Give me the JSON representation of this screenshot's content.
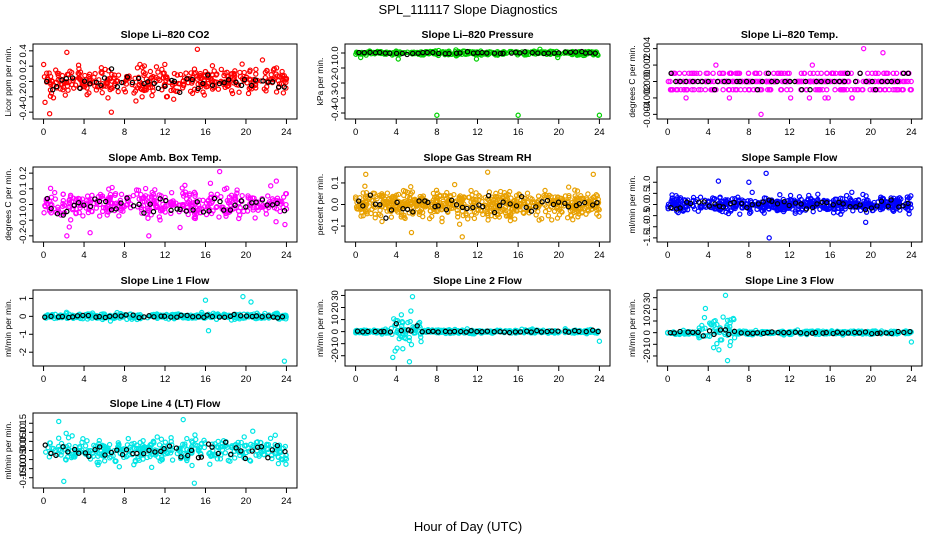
{
  "figure": {
    "title": "SPL_111117  Slope Diagnostics",
    "xlabel": "Hour of Day (UTC)"
  },
  "chart_data": [
    {
      "type": "scatter",
      "title": "Slope Li–820 CO2",
      "ylabel": "Licor ppm per min.",
      "xlim": [
        0,
        24
      ],
      "ylim": [
        -0.45,
        0.45
      ],
      "yticks": [
        -0.4,
        -0.2,
        0.0,
        0.2,
        0.4
      ],
      "ytick_labels": [
        "-0.4",
        "-0.2",
        "0.0",
        "0.2",
        "0.4"
      ],
      "xticks": [
        0,
        4,
        8,
        12,
        16,
        20,
        24
      ],
      "color": "#ff0000",
      "spread": 0.17,
      "spikes": [
        [
          0.6,
          -0.42
        ],
        [
          2.3,
          0.38
        ],
        [
          6.7,
          -0.4
        ],
        [
          15.2,
          0.42
        ]
      ],
      "n": 380,
      "seed": 11
    },
    {
      "type": "scatter",
      "title": "Slope Li–820 Pressure",
      "ylabel": "kPa per min.",
      "xlim": [
        0,
        24
      ],
      "ylim": [
        -0.42,
        0.04
      ],
      "yticks": [
        -0.4,
        -0.3,
        -0.2,
        -0.1,
        0.0
      ],
      "ytick_labels": [
        "-0.4",
        "-0.3",
        "-0.2",
        "-0.1",
        "0.0"
      ],
      "xticks": [
        0,
        4,
        8,
        12,
        16,
        20,
        24
      ],
      "color": "#00d000",
      "spread": 0.012,
      "spikes": [
        [
          8.0,
          -0.415
        ],
        [
          16.0,
          -0.415
        ],
        [
          24.0,
          -0.415
        ],
        [
          0.5,
          -0.03
        ],
        [
          4.2,
          -0.04
        ],
        [
          11.9,
          -0.04
        ],
        [
          19.9,
          -0.03
        ]
      ],
      "n": 380,
      "seed": 12
    },
    {
      "type": "scatter",
      "title": "Slope Li–820 Temp.",
      "ylabel": "degrees C per min.",
      "xlim": [
        0,
        24
      ],
      "ylim": [
        -0.0042,
        0.0042
      ],
      "yticks": [
        -0.004,
        -0.002,
        0.0,
        0.002,
        0.004
      ],
      "ytick_labels": [
        "-0.004",
        "-0.002",
        "0.000",
        "0.002",
        "0.004"
      ],
      "xticks": [
        0,
        4,
        8,
        12,
        16,
        20,
        24
      ],
      "color": "#ff00ff",
      "spread": 0.0012,
      "quant": 0.001,
      "spikes": [
        [
          9.2,
          -0.004
        ],
        [
          19.3,
          0.004
        ],
        [
          21.2,
          0.0035
        ]
      ],
      "n": 380,
      "seed": 13
    },
    {
      "type": "scatter",
      "title": "Slope Amb. Box Temp.",
      "ylabel": "degrees C per min.",
      "xlim": [
        0,
        24
      ],
      "ylim": [
        -0.22,
        0.22
      ],
      "yticks": [
        -0.2,
        -0.1,
        0.0,
        0.1,
        0.2
      ],
      "ytick_labels": [
        "-0.2",
        "-0.1",
        "0.0",
        "0.1",
        "0.2"
      ],
      "xticks": [
        0,
        4,
        8,
        12,
        16,
        20,
        24
      ],
      "color": "#ff00ff",
      "spread": 0.085,
      "spikes": [
        [
          2.3,
          -0.2
        ],
        [
          4.6,
          -0.18
        ],
        [
          10.4,
          -0.2
        ],
        [
          17.4,
          0.21
        ]
      ],
      "n": 380,
      "seed": 14
    },
    {
      "type": "scatter",
      "title": "Slope Gas Stream RH",
      "ylabel": "percent per min.",
      "xlim": [
        0,
        24
      ],
      "ylim": [
        -0.16,
        0.16
      ],
      "yticks": [
        -0.1,
        0.0,
        0.1
      ],
      "ytick_labels": [
        "-0.1",
        "0.0",
        "0.1"
      ],
      "xticks": [
        0,
        4,
        8,
        12,
        16,
        20,
        24
      ],
      "color": "#e8a000",
      "spread": 0.055,
      "spikes": [
        [
          1.0,
          0.14
        ],
        [
          5.5,
          -0.13
        ],
        [
          10.5,
          -0.15
        ],
        [
          13.0,
          0.15
        ],
        [
          23.4,
          0.14
        ]
      ],
      "n": 620,
      "seed": 15
    },
    {
      "type": "scatter",
      "title": "Slope Sample Flow",
      "ylabel": "ml/min per min.",
      "xlim": [
        0,
        24
      ],
      "ylim": [
        -1.55,
        1.55
      ],
      "yticks": [
        -1.5,
        -1.0,
        -0.5,
        0.0,
        0.5,
        1.0
      ],
      "ytick_labels": [
        "-1.5",
        "-1.0",
        "-0.5",
        "0.0",
        "0.5",
        "1.0"
      ],
      "xticks": [
        0,
        4,
        8,
        12,
        16,
        20,
        24
      ],
      "color": "#0000ff",
      "spread": 0.32,
      "spikes": [
        [
          9.7,
          1.4
        ],
        [
          10.0,
          -1.5
        ],
        [
          5.0,
          1.05
        ],
        [
          8.0,
          1.0
        ],
        [
          19.5,
          -0.8
        ]
      ],
      "n": 520,
      "seed": 16
    },
    {
      "type": "scatter",
      "title": "Slope Line 1 Flow",
      "ylabel": "ml/min per min.",
      "xlim": [
        0,
        24
      ],
      "ylim": [
        -2.6,
        1.3
      ],
      "yticks": [
        -2,
        -1,
        0,
        1
      ],
      "ytick_labels": [
        "-2",
        "-1",
        "0",
        "1"
      ],
      "xticks": [
        0,
        4,
        8,
        12,
        16,
        20,
        24
      ],
      "color": "#00e5e5",
      "spread": 0.14,
      "spikes": [
        [
          16.3,
          -0.8
        ],
        [
          19.7,
          1.1
        ],
        [
          23.8,
          -2.5
        ],
        [
          16.0,
          0.9
        ],
        [
          20.5,
          0.8
        ]
      ],
      "n": 400,
      "seed": 17
    },
    {
      "type": "scatter",
      "title": "Slope Line 2 Flow",
      "ylabel": "ml/min per min.",
      "xlim": [
        0,
        24
      ],
      "ylim": [
        -26,
        32
      ],
      "yticks": [
        -20,
        -10,
        0,
        10,
        20,
        30
      ],
      "ytick_labels": [
        "-20",
        "-10",
        "0",
        "10",
        "20",
        "30"
      ],
      "xticks": [
        0,
        4,
        8,
        12,
        16,
        20,
        24
      ],
      "color": "#00e5e5",
      "spread": 1.4,
      "burst": [
        3.3,
        6.5,
        10
      ],
      "spikes": [
        [
          5.6,
          29
        ],
        [
          5.3,
          -25
        ],
        [
          24.0,
          -8
        ]
      ],
      "n": 400,
      "seed": 18
    },
    {
      "type": "scatter",
      "title": "Slope Line 3 Flow",
      "ylabel": "ml/min per min.",
      "xlim": [
        0,
        24
      ],
      "ylim": [
        -26,
        34
      ],
      "yticks": [
        -20,
        -10,
        0,
        10,
        20,
        30
      ],
      "ytick_labels": [
        "-20",
        "-10",
        "0",
        "10",
        "20",
        "30"
      ],
      "xticks": [
        0,
        4,
        8,
        12,
        16,
        20,
        24
      ],
      "color": "#00e5e5",
      "spread": 1.4,
      "burst": [
        3.0,
        6.8,
        10
      ],
      "spikes": [
        [
          5.7,
          32
        ],
        [
          5.9,
          -24
        ],
        [
          24.0,
          -8
        ]
      ],
      "n": 400,
      "seed": 19
    },
    {
      "type": "scatter",
      "title": "Slope Line 4 (LT) Flow",
      "ylabel": "ml/min per min.",
      "xlim": [
        0,
        24
      ],
      "ylim": [
        -0.19,
        0.19
      ],
      "yticks": [
        -0.15,
        -0.1,
        -0.05,
        0.0,
        0.05,
        0.1,
        0.15
      ],
      "ytick_labels": [
        "-0.15",
        "-0.10",
        "-0.05",
        "0.00",
        "0.05",
        "0.10",
        "0.15"
      ],
      "xticks": [
        0,
        4,
        8,
        12,
        16,
        20,
        24
      ],
      "color": "#00e5e5",
      "spread": 0.06,
      "spikes": [
        [
          1.5,
          0.16
        ],
        [
          13.8,
          0.17
        ],
        [
          14.9,
          -0.18
        ],
        [
          2.0,
          -0.17
        ]
      ],
      "n": 380,
      "seed": 20
    }
  ]
}
